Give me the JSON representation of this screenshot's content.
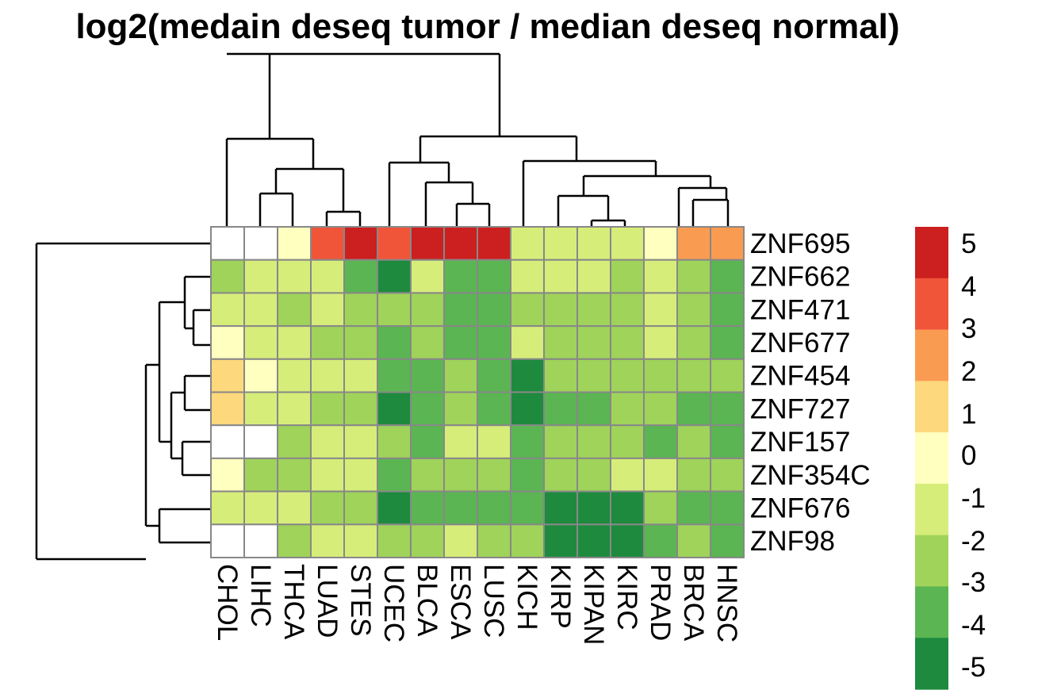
{
  "chart_data": {
    "type": "heatmap",
    "title": "log2(medain deseq tumor / median deseq normal)",
    "columns": [
      "CHOL",
      "LIHC",
      "THCA",
      "LUAD",
      "STES",
      "UCEC",
      "BLCA",
      "ESCA",
      "LUSC",
      "KICH",
      "KIRP",
      "KIPAN",
      "KIRC",
      "PRAD",
      "BRCA",
      "HNSC"
    ],
    "rows": [
      "ZNF695",
      "ZNF662",
      "ZNF471",
      "ZNF677",
      "ZNF454",
      "ZNF727",
      "ZNF157",
      "ZNF354C",
      "ZNF676",
      "ZNF98"
    ],
    "values": [
      [
        null,
        null,
        1.0,
        3.5,
        4.5,
        3.5,
        4.5,
        4.5,
        4.5,
        -0.5,
        -0.5,
        -0.5,
        -0.5,
        0.5,
        2.5,
        2.5
      ],
      [
        -1.5,
        -0.5,
        -0.5,
        -0.5,
        -2.5,
        -3.5,
        0.0,
        -2.5,
        -2.5,
        -0.5,
        -0.5,
        -0.5,
        -1.5,
        -0.5,
        -1.5,
        -2.5
      ],
      [
        -0.5,
        -0.5,
        -1.5,
        -0.5,
        -1.5,
        -1.5,
        -1.5,
        -2.5,
        -2.5,
        -1.5,
        -1.5,
        -1.5,
        -1.5,
        -0.5,
        -1.5,
        -2.5
      ],
      [
        0.5,
        -0.5,
        -0.5,
        -1.5,
        -1.5,
        -2.5,
        -1.5,
        -2.5,
        -2.5,
        0.0,
        -1.5,
        -1.5,
        -1.5,
        -0.5,
        -1.5,
        -2.5
      ],
      [
        1.5,
        0.5,
        -0.5,
        -0.5,
        -0.5,
        -2.5,
        -2.5,
        -1.5,
        -2.5,
        -3.5,
        -1.5,
        -1.5,
        -1.5,
        -1.5,
        -1.5,
        -1.5
      ],
      [
        1.5,
        -0.5,
        -0.5,
        -1.5,
        -1.5,
        -3.5,
        -2.5,
        -1.5,
        -2.5,
        -3.5,
        -2.5,
        -2.5,
        -1.5,
        -1.5,
        -2.5,
        -2.5
      ],
      [
        null,
        null,
        -1.5,
        -0.5,
        -0.5,
        -1.5,
        -2.5,
        -0.5,
        -0.5,
        -2.5,
        -1.5,
        -1.5,
        -1.5,
        -2.5,
        -1.5,
        -2.5
      ],
      [
        0.5,
        -1.5,
        -1.5,
        -0.5,
        -0.5,
        -2.5,
        -1.5,
        -1.5,
        -1.5,
        -2.5,
        -1.5,
        -1.5,
        0.0,
        0.0,
        -1.5,
        -1.5
      ],
      [
        -0.5,
        -0.5,
        -0.5,
        -1.5,
        -1.5,
        -4.5,
        -2.5,
        -2.5,
        -2.5,
        -2.5,
        -3.5,
        -3.5,
        -3.5,
        -1.5,
        -2.5,
        -2.5
      ],
      [
        null,
        null,
        -1.5,
        -0.5,
        -0.5,
        -1.5,
        -1.5,
        -0.5,
        -1.5,
        -1.5,
        -3.5,
        -3.5,
        -3.5,
        -2.5,
        -1.5,
        -2.5
      ]
    ],
    "legend": {
      "labels": [
        "5",
        "4",
        "3",
        "2",
        "1",
        "0",
        "-1",
        "-2",
        "-3",
        "-4",
        "-5"
      ],
      "colors": [
        "#cc1f1f",
        "#f0553a",
        "#fa9b52",
        "#fdd87c",
        "#ffffbf",
        "#d6ed7a",
        "#9fd35a",
        "#5ab552",
        "#1e8a3e"
      ],
      "missing_color": "#ffffff",
      "grid_color": "#888888"
    }
  }
}
